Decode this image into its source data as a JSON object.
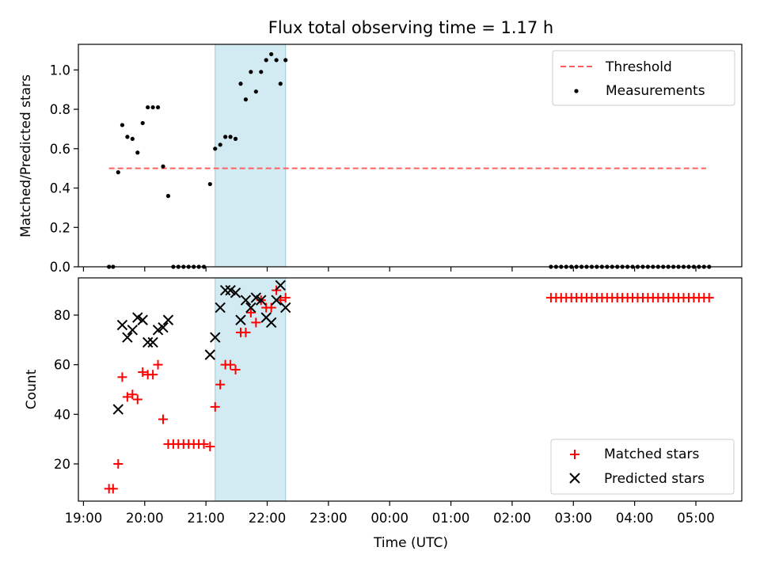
{
  "title": "Flux total observing time = 1.17 h",
  "shared_x_axis": {
    "label": "Time (UTC)",
    "range": [
      "18:55",
      "05:45"
    ],
    "ticks": [
      "19:00",
      "20:00",
      "21:00",
      "22:00",
      "23:00",
      "00:00",
      "01:00",
      "02:00",
      "03:00",
      "04:00",
      "05:00"
    ]
  },
  "highlight_band": {
    "start": "21:09",
    "end": "22:18",
    "color": "#add8e6"
  },
  "chart_data": [
    {
      "type": "scatter",
      "name": "ratio-panel",
      "ylabel": "Matched/Predicted stars",
      "ylim": [
        0,
        1.13
      ],
      "yticks": [
        "0.0",
        "0.2",
        "0.4",
        "0.6",
        "0.8",
        "1.0"
      ],
      "legend_position": "top-right",
      "threshold": {
        "label": "Threshold",
        "value": 0.5,
        "x_start": "19:25",
        "x_end": "05:10",
        "color": "#ff6060"
      },
      "series": [
        {
          "name": "Measurements",
          "color": "#000000",
          "points": [
            [
              "19:25",
              0
            ],
            [
              "19:29",
              0
            ],
            [
              "19:34",
              0.48
            ],
            [
              "19:38",
              0.72
            ],
            [
              "19:43",
              0.66
            ],
            [
              "19:48",
              0.65
            ],
            [
              "19:53",
              0.58
            ],
            [
              "19:58",
              0.73
            ],
            [
              "20:03",
              0.81
            ],
            [
              "20:08",
              0.81
            ],
            [
              "20:13",
              0.81
            ],
            [
              "20:18",
              0.51
            ],
            [
              "20:23",
              0.36
            ],
            [
              "20:28",
              0
            ],
            [
              "20:33",
              0
            ],
            [
              "20:38",
              0
            ],
            [
              "20:43",
              0
            ],
            [
              "20:48",
              0
            ],
            [
              "20:53",
              0
            ],
            [
              "20:58",
              0
            ],
            [
              "21:04",
              0.42
            ],
            [
              "21:09",
              0.6
            ],
            [
              "21:14",
              0.62
            ],
            [
              "21:19",
              0.66
            ],
            [
              "21:24",
              0.66
            ],
            [
              "21:29",
              0.65
            ],
            [
              "21:34",
              0.93
            ],
            [
              "21:39",
              0.85
            ],
            [
              "21:44",
              0.99
            ],
            [
              "21:49",
              0.89
            ],
            [
              "21:54",
              0.99
            ],
            [
              "21:59",
              1.05
            ],
            [
              "22:04",
              1.08
            ],
            [
              "22:09",
              1.05
            ],
            [
              "22:13",
              0.93
            ],
            [
              "22:18",
              1.05
            ],
            [
              "02:38",
              0
            ],
            [
              "02:43",
              0
            ],
            [
              "02:48",
              0
            ],
            [
              "02:53",
              0
            ],
            [
              "02:58",
              0
            ],
            [
              "03:03",
              0
            ],
            [
              "03:08",
              0
            ],
            [
              "03:13",
              0
            ],
            [
              "03:18",
              0
            ],
            [
              "03:23",
              0
            ],
            [
              "03:28",
              0
            ],
            [
              "03:33",
              0
            ],
            [
              "03:38",
              0
            ],
            [
              "03:43",
              0
            ],
            [
              "03:48",
              0
            ],
            [
              "03:53",
              0
            ],
            [
              "03:58",
              0
            ],
            [
              "04:03",
              0
            ],
            [
              "04:08",
              0
            ],
            [
              "04:13",
              0
            ],
            [
              "04:18",
              0
            ],
            [
              "04:23",
              0
            ],
            [
              "04:28",
              0
            ],
            [
              "04:33",
              0
            ],
            [
              "04:38",
              0
            ],
            [
              "04:43",
              0
            ],
            [
              "04:48",
              0
            ],
            [
              "04:53",
              0
            ],
            [
              "04:58",
              0
            ],
            [
              "05:03",
              0
            ],
            [
              "05:08",
              0
            ],
            [
              "05:13",
              0
            ]
          ]
        }
      ]
    },
    {
      "type": "scatter",
      "name": "count-panel",
      "ylabel": "Count",
      "ylim": [
        5,
        95
      ],
      "yticks": [
        "20",
        "40",
        "60",
        "80"
      ],
      "legend_position": "lower-right",
      "series": [
        {
          "name": "Matched stars",
          "color": "#ff0000",
          "marker": "plus",
          "points": [
            [
              "19:25",
              10
            ],
            [
              "19:29",
              10
            ],
            [
              "19:34",
              20
            ],
            [
              "19:38",
              55
            ],
            [
              "19:43",
              47
            ],
            [
              "19:48",
              48
            ],
            [
              "19:53",
              46
            ],
            [
              "19:58",
              57
            ],
            [
              "20:03",
              56
            ],
            [
              "20:08",
              56
            ],
            [
              "20:13",
              60
            ],
            [
              "20:18",
              38
            ],
            [
              "20:23",
              28
            ],
            [
              "20:28",
              28
            ],
            [
              "20:33",
              28
            ],
            [
              "20:38",
              28
            ],
            [
              "20:43",
              28
            ],
            [
              "20:48",
              28
            ],
            [
              "20:53",
              28
            ],
            [
              "20:58",
              28
            ],
            [
              "21:04",
              27
            ],
            [
              "21:09",
              43
            ],
            [
              "21:14",
              52
            ],
            [
              "21:19",
              60
            ],
            [
              "21:24",
              60
            ],
            [
              "21:29",
              58
            ],
            [
              "21:34",
              73
            ],
            [
              "21:39",
              73
            ],
            [
              "21:44",
              81
            ],
            [
              "21:49",
              77
            ],
            [
              "21:54",
              86
            ],
            [
              "21:59",
              83
            ],
            [
              "22:04",
              83
            ],
            [
              "22:09",
              90
            ],
            [
              "22:13",
              86
            ],
            [
              "22:18",
              87
            ],
            [
              "02:38",
              87
            ],
            [
              "02:43",
              87
            ],
            [
              "02:48",
              87
            ],
            [
              "02:53",
              87
            ],
            [
              "02:58",
              87
            ],
            [
              "03:03",
              87
            ],
            [
              "03:08",
              87
            ],
            [
              "03:13",
              87
            ],
            [
              "03:18",
              87
            ],
            [
              "03:23",
              87
            ],
            [
              "03:28",
              87
            ],
            [
              "03:33",
              87
            ],
            [
              "03:38",
              87
            ],
            [
              "03:43",
              87
            ],
            [
              "03:48",
              87
            ],
            [
              "03:53",
              87
            ],
            [
              "03:58",
              87
            ],
            [
              "04:03",
              87
            ],
            [
              "04:08",
              87
            ],
            [
              "04:13",
              87
            ],
            [
              "04:18",
              87
            ],
            [
              "04:23",
              87
            ],
            [
              "04:28",
              87
            ],
            [
              "04:33",
              87
            ],
            [
              "04:38",
              87
            ],
            [
              "04:43",
              87
            ],
            [
              "04:48",
              87
            ],
            [
              "04:53",
              87
            ],
            [
              "04:58",
              87
            ],
            [
              "05:03",
              87
            ],
            [
              "05:08",
              87
            ],
            [
              "05:13",
              87
            ]
          ]
        },
        {
          "name": "Predicted stars",
          "color": "#000000",
          "marker": "x",
          "points": [
            [
              "19:34",
              42
            ],
            [
              "19:38",
              76
            ],
            [
              "19:43",
              71
            ],
            [
              "19:48",
              74
            ],
            [
              "19:53",
              79
            ],
            [
              "19:58",
              78
            ],
            [
              "20:03",
              69
            ],
            [
              "20:08",
              69
            ],
            [
              "20:13",
              74
            ],
            [
              "20:18",
              75
            ],
            [
              "20:23",
              78
            ],
            [
              "21:04",
              64
            ],
            [
              "21:09",
              71
            ],
            [
              "21:14",
              83
            ],
            [
              "21:19",
              90
            ],
            [
              "21:24",
              90
            ],
            [
              "21:29",
              89
            ],
            [
              "21:34",
              78
            ],
            [
              "21:39",
              86
            ],
            [
              "21:44",
              83
            ],
            [
              "21:49",
              87
            ],
            [
              "21:54",
              86
            ],
            [
              "21:59",
              79
            ],
            [
              "22:04",
              77
            ],
            [
              "22:09",
              86
            ],
            [
              "22:13",
              92
            ],
            [
              "22:18",
              83
            ]
          ]
        }
      ]
    }
  ]
}
